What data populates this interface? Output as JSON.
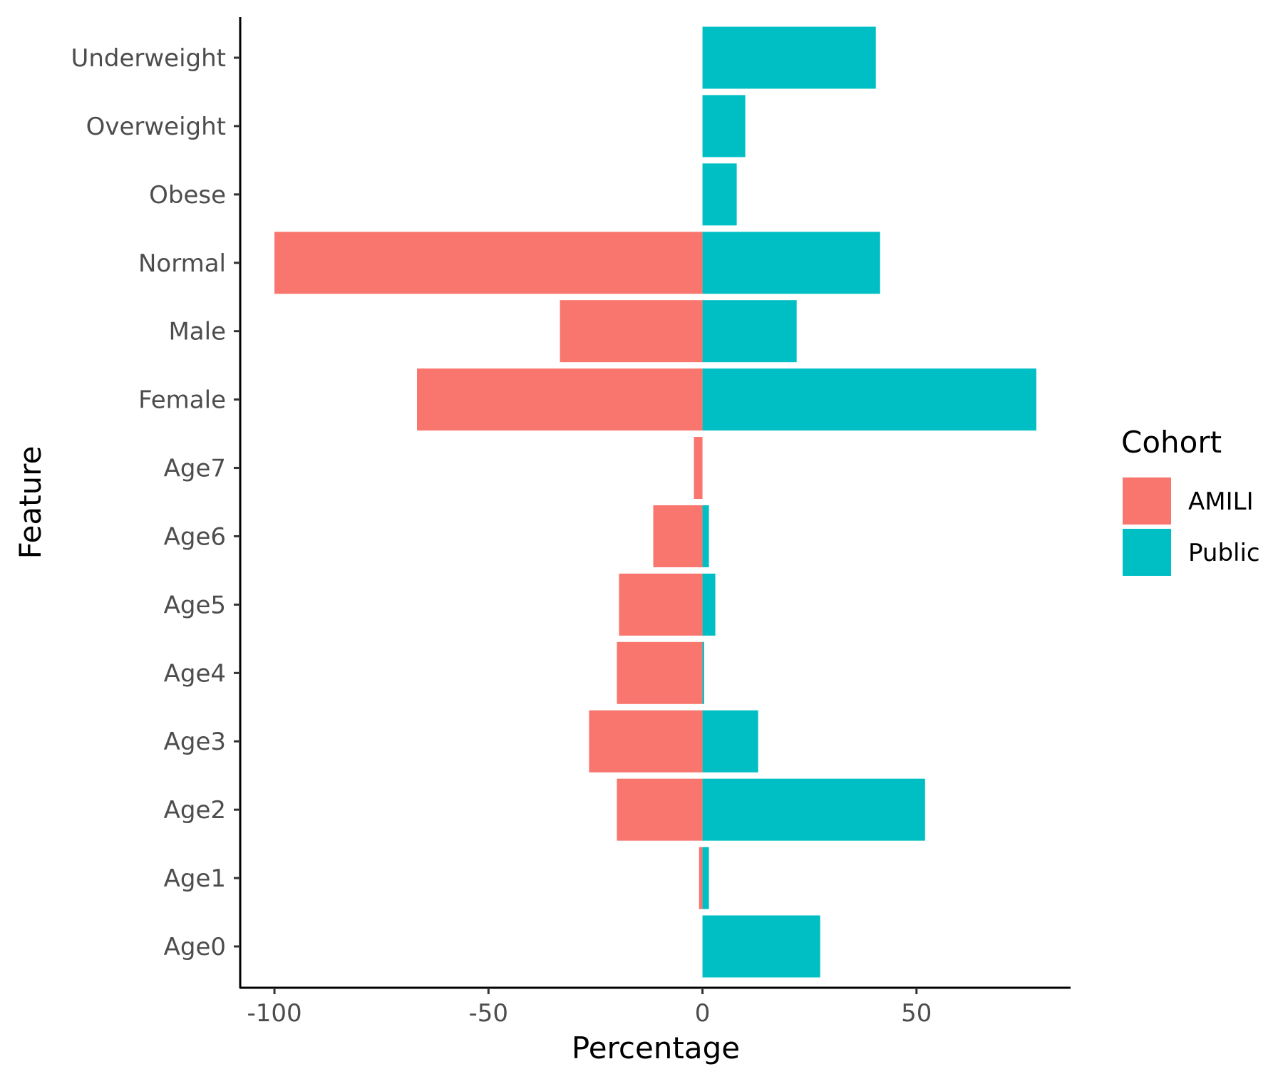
{
  "chart_data": {
    "type": "bar",
    "orientation": "horizontal",
    "categories": [
      "Age0",
      "Age1",
      "Age2",
      "Age3",
      "Age4",
      "Age5",
      "Age6",
      "Age7",
      "Female",
      "Male",
      "Normal",
      "Obese",
      "Overweight",
      "Underweight"
    ],
    "series": [
      {
        "name": "AMILI",
        "color": "#F8766D",
        "values": [
          0,
          -0.8,
          -20,
          -26.5,
          -20,
          -19.5,
          -11.5,
          -2,
          -66.7,
          -33.3,
          -100,
          0,
          0,
          0
        ]
      },
      {
        "name": "Public",
        "color": "#00BFC4",
        "values": [
          27.5,
          1.5,
          52,
          13,
          0.4,
          3,
          1.5,
          0,
          78,
          22,
          41.5,
          8,
          10,
          40.5
        ]
      }
    ],
    "xlabel": "Percentage",
    "ylabel": "Feature",
    "xlim": [
      -108,
      86
    ],
    "xticks": [
      -100,
      -50,
      0,
      50
    ],
    "xtick_labels": [
      "-100",
      "-50",
      "0",
      "50"
    ],
    "grid": false,
    "legend": {
      "title": "Cohort",
      "position": "right"
    }
  }
}
